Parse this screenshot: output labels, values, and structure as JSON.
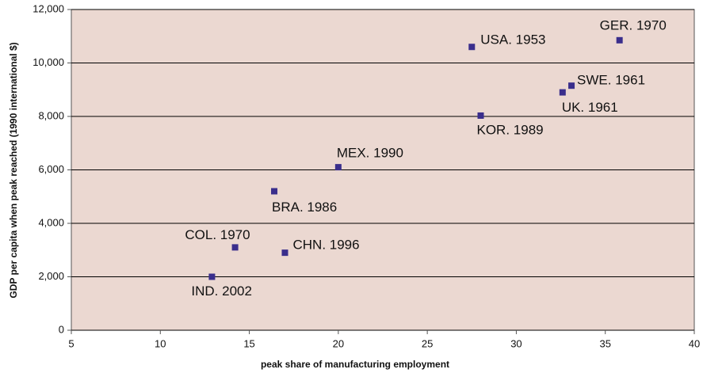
{
  "chart_data": {
    "type": "scatter",
    "x_label": "peak share of manufacturing employment",
    "y_label": "GDP per capita when peak reached (1990 international $)",
    "x": [
      27.5,
      35.8,
      33.1,
      32.6,
      28,
      20,
      16.4,
      14.2,
      17,
      12.9
    ],
    "values": [
      10600,
      10850,
      9150,
      8900,
      8030,
      6100,
      5200,
      3100,
      2900,
      2000
    ],
    "point_labels": [
      "USA. 1953",
      "GER. 1970",
      "SWE. 1961",
      "UK. 1961",
      "KOR. 1989",
      "MEX. 1990",
      "BRA. 1986",
      "COL. 1970",
      "CHN. 1996",
      "IND. 2002"
    ],
    "color": "#3a2e8c",
    "background": "#ebd8d1",
    "xlim": [
      5,
      40
    ],
    "xticks": [
      5,
      10,
      15,
      20,
      25,
      30,
      35,
      40
    ],
    "ylim": [
      0,
      12000
    ],
    "yticks": [
      0,
      {
        "value": 2000,
        "label": "2,000"
      },
      {
        "value": 4000,
        "label": "4,000"
      },
      {
        "value": 6000,
        "label": "6,000"
      },
      {
        "value": 8000,
        "label": "8,000"
      },
      {
        "value": 10000,
        "label": "10,000"
      },
      {
        "value": 12000,
        "label": "12,000"
      }
    ],
    "grid": true
  }
}
